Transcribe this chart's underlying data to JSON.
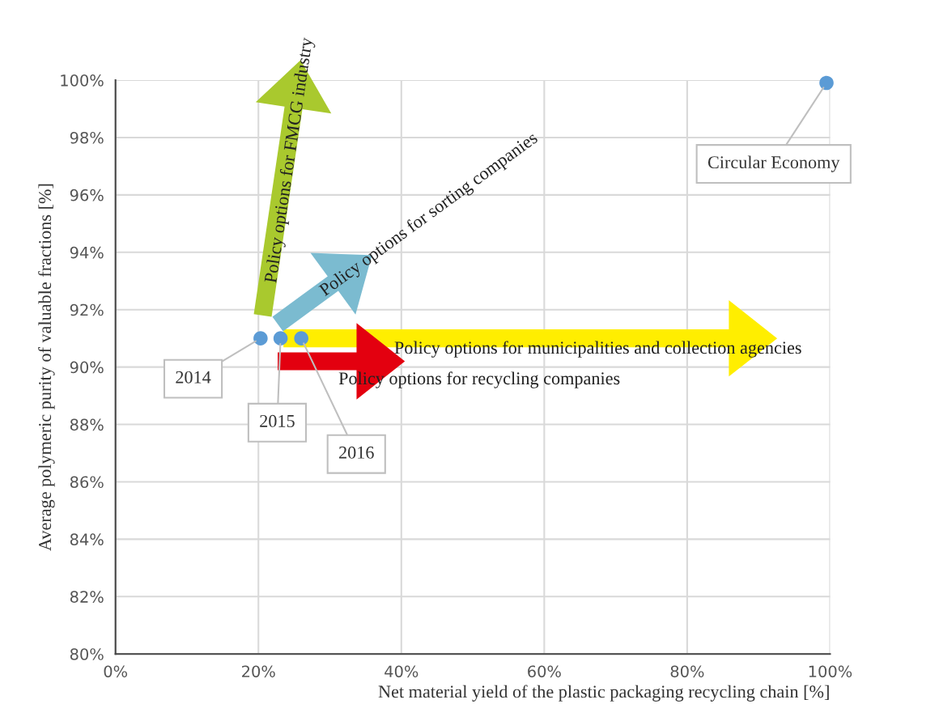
{
  "chart_data": {
    "type": "scatter",
    "xlabel": "Net material yield of the plastic packaging recycling chain [%]",
    "ylabel": "Average polymeric purity of valuable fractions [%]",
    "x": [
      20.3,
      23.1,
      26.0,
      99.5
    ],
    "values": [
      91.0,
      91.0,
      91.0,
      99.9
    ],
    "color": "#5b9bd5",
    "marker": "circle",
    "xlim": [
      0,
      100
    ],
    "xticks": [
      {
        "value": 0,
        "label": "0%"
      },
      {
        "value": 20,
        "label": "20%"
      },
      {
        "value": 40,
        "label": "40%"
      },
      {
        "value": 60,
        "label": "60%"
      },
      {
        "value": 80,
        "label": "80%"
      },
      {
        "value": 100,
        "label": "100%"
      }
    ],
    "ylim": [
      80,
      100
    ],
    "yticks": [
      {
        "value": 80,
        "label": "80%"
      },
      {
        "value": 82,
        "label": "82%"
      },
      {
        "value": 84,
        "label": "84%"
      },
      {
        "value": 86,
        "label": "86%"
      },
      {
        "value": 88,
        "label": "88%"
      },
      {
        "value": 90,
        "label": "90%"
      },
      {
        "value": 92,
        "label": "92%"
      },
      {
        "value": 94,
        "label": "94%"
      },
      {
        "value": 96,
        "label": "96%"
      },
      {
        "value": 98,
        "label": "98%"
      },
      {
        "value": 100,
        "label": "100%"
      }
    ],
    "grid": true,
    "annotations": [
      {
        "text": "2014",
        "x": 20.3,
        "y": 91.0
      },
      {
        "text": "2015",
        "x": 23.1,
        "y": 91.0
      },
      {
        "text": "2016",
        "x": 26.0,
        "y": 91.0
      },
      {
        "text": "Circular Economy",
        "x": 99.5,
        "y": 99.9
      },
      "Policy options for FMCG industry",
      "Policy options for sorting companies",
      "Policy options for municipalities and collection agencies",
      "Policy options for recycling companies"
    ]
  }
}
